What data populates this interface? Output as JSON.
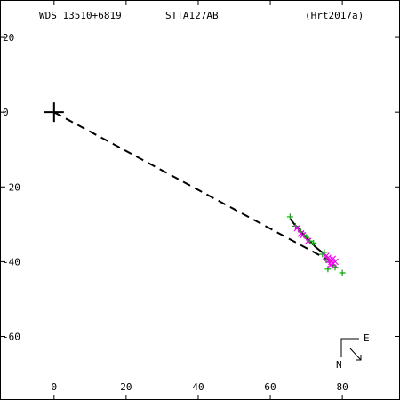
{
  "header": {
    "wds_id": "WDS 13510+6819",
    "discoverer": "STTA127AB",
    "reference": "(Hrt2017a)"
  },
  "compass": {
    "east_label": "E",
    "north_label": "N"
  },
  "colors": {
    "axes": "#000000",
    "observation_green": "#00aa00",
    "observation_magenta": "#ff00ff",
    "orbit": "#000000"
  },
  "chart_data": {
    "type": "scatter",
    "title": "",
    "xlabel": "",
    "ylabel": "",
    "xlim": [
      -15,
      96
    ],
    "ylim": [
      -77,
      30
    ],
    "x_ticks": [
      0,
      20,
      40,
      60,
      80
    ],
    "y_ticks": [
      20,
      0,
      -20,
      -40,
      -60
    ],
    "x_tick_labels": [
      "0",
      "20",
      "40",
      "60",
      "80"
    ],
    "y_tick_labels": [
      "20",
      "0",
      "-20",
      "-40",
      "-60"
    ],
    "primary": [
      0,
      0
    ],
    "orbit_path": [
      [
        65.5,
        -28.5
      ],
      [
        67.5,
        -31.0
      ],
      [
        70.0,
        -33.5
      ],
      [
        72.5,
        -36.0
      ],
      [
        75.0,
        -38.0
      ],
      [
        77.0,
        -40.0
      ]
    ],
    "dashed_line": [
      [
        0,
        0
      ],
      [
        77.0,
        -40.0
      ]
    ],
    "series": [
      {
        "marker": "plus",
        "color": "green",
        "points": [
          [
            65.5,
            -28.0
          ],
          [
            67.0,
            -30.5
          ],
          [
            68.5,
            -32.0
          ],
          [
            69.5,
            -33.0
          ],
          [
            70.0,
            -33.5
          ],
          [
            71.0,
            -34.5
          ],
          [
            72.0,
            -35.0
          ],
          [
            74.5,
            -38.0
          ],
          [
            75.0,
            -37.5
          ],
          [
            75.5,
            -39.5
          ],
          [
            76.0,
            -42.0
          ],
          [
            77.5,
            -41.0
          ],
          [
            78.0,
            -41.5
          ],
          [
            80.0,
            -43.0
          ],
          [
            76.5,
            -40.0
          ]
        ]
      },
      {
        "marker": "cross",
        "color": "magenta",
        "points": [
          [
            67.5,
            -31.0
          ],
          [
            68.5,
            -32.5
          ],
          [
            69.0,
            -33.0
          ],
          [
            70.5,
            -34.5
          ],
          [
            75.5,
            -38.5
          ],
          [
            76.0,
            -39.0
          ],
          [
            76.5,
            -39.5
          ],
          [
            77.0,
            -40.0
          ],
          [
            77.5,
            -40.5
          ],
          [
            78.0,
            -40.0
          ],
          [
            76.8,
            -40.8
          ],
          [
            77.3,
            -39.3
          ]
        ]
      }
    ],
    "grid": false,
    "legend": "none"
  }
}
